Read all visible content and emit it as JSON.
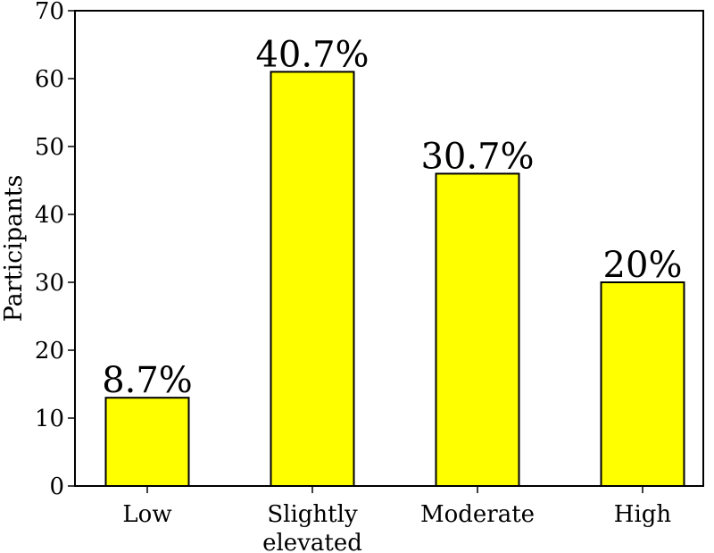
{
  "chart_data": {
    "type": "bar",
    "title": "",
    "xlabel": "",
    "ylabel": "Participants",
    "categories": [
      [
        "Low"
      ],
      [
        "Slightly",
        "elevated"
      ],
      [
        "Moderate"
      ],
      [
        "High"
      ]
    ],
    "values": [
      13,
      61,
      46,
      30
    ],
    "bar_labels": [
      "8.7%",
      "40.7%",
      "30.7%",
      "20%"
    ],
    "ylim": [
      0,
      70
    ],
    "yticks": [
      0,
      10,
      20,
      30,
      40,
      50,
      60,
      70
    ],
    "grid": false,
    "legend": "none",
    "colors": {
      "bar_fill": "#ffff00",
      "bar_edge": "#000000",
      "axis": "#000000",
      "background": "#ffffff"
    }
  }
}
